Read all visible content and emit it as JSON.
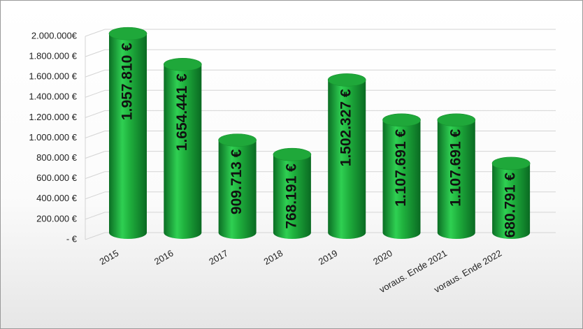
{
  "chart_data": {
    "type": "bar",
    "categories": [
      "2015",
      "2016",
      "2017",
      "2018",
      "2019",
      "2020",
      "voraus. Ende 2021",
      "voraus. Ende 2022"
    ],
    "values": [
      1957810,
      1654441,
      909713,
      768191,
      1502327,
      1107691,
      1107691,
      680791
    ],
    "value_labels": [
      "1.957.810 €",
      "1.654.441 €",
      "909.713 €",
      "768.191 €",
      "1.502.327 €",
      "1.107.691 €",
      "1.107.691 €",
      "680.791 €"
    ],
    "color": "#1fa83a",
    "ylim": [
      0,
      2000000
    ],
    "yticks": [
      {
        "value": 0,
        "label": "-  €"
      },
      {
        "value": 200000,
        "label": "200.000 €"
      },
      {
        "value": 400000,
        "label": "400.000 €"
      },
      {
        "value": 600000,
        "label": "600.000 €"
      },
      {
        "value": 800000,
        "label": "800.000 €"
      },
      {
        "value": 1000000,
        "label": "1.000.000 €"
      },
      {
        "value": 1200000,
        "label": "1.200.000 €"
      },
      {
        "value": 1400000,
        "label": "1.400.000 €"
      },
      {
        "value": 1600000,
        "label": "1.600.000 €"
      },
      {
        "value": 1800000,
        "label": "1.800.000 €"
      },
      {
        "value": 2000000,
        "label": "2.000.000€"
      }
    ],
    "grid": true
  }
}
